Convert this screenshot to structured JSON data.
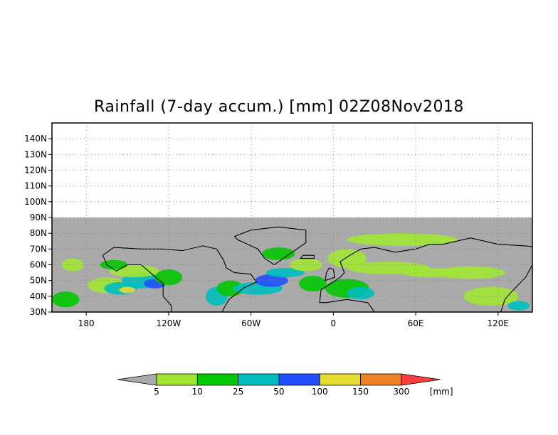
{
  "title": "Rainfall (7-day accum.) [mm] 02Z08Nov2018",
  "map": {
    "lon_range": [
      -205,
      145
    ],
    "lat_range": [
      30,
      150
    ],
    "data_lat_max": 90,
    "lat_labels": [
      "30N",
      "40N",
      "50N",
      "60N",
      "70N",
      "80N",
      "90N",
      "100N",
      "110N",
      "120N",
      "130N",
      "140N"
    ],
    "lon_labels": [
      {
        "label": "180",
        "lon": -180
      },
      {
        "label": "120W",
        "lon": -120
      },
      {
        "label": "60W",
        "lon": -60
      },
      {
        "label": "0",
        "lon": 0
      },
      {
        "label": "60E",
        "lon": 60
      },
      {
        "label": "120E",
        "lon": 120
      }
    ],
    "grid": "dotted",
    "no_data_color": "#aaaaaa"
  },
  "colorbar": {
    "unit_label": "[mm]",
    "levels": [
      "5",
      "10",
      "25",
      "50",
      "100",
      "150",
      "300"
    ],
    "colors": [
      "#aaaaaa",
      "#a0e632",
      "#00c800",
      "#00bebe",
      "#2050ff",
      "#e6dc32",
      "#f08228",
      "#fa3c3c"
    ]
  },
  "rain_bands": [
    {
      "lon": -165,
      "lat": 47,
      "rx": 14,
      "ry": 5,
      "level": 1
    },
    {
      "lon": -155,
      "lat": 45,
      "rx": 12,
      "ry": 4,
      "level": 3
    },
    {
      "lon": -150,
      "lat": 44,
      "rx": 6,
      "ry": 2,
      "level": 5
    },
    {
      "lon": -140,
      "lat": 50,
      "rx": 14,
      "ry": 5,
      "level": 3
    },
    {
      "lon": -130,
      "lat": 48,
      "rx": 8,
      "ry": 3,
      "level": 4
    },
    {
      "lon": -145,
      "lat": 56,
      "rx": 18,
      "ry": 4,
      "level": 1
    },
    {
      "lon": -160,
      "lat": 60,
      "rx": 10,
      "ry": 3,
      "level": 2
    },
    {
      "lon": -120,
      "lat": 52,
      "rx": 10,
      "ry": 5,
      "level": 2
    },
    {
      "lon": -85,
      "lat": 40,
      "rx": 8,
      "ry": 6,
      "level": 3
    },
    {
      "lon": -75,
      "lat": 45,
      "rx": 10,
      "ry": 5,
      "level": 2
    },
    {
      "lon": -55,
      "lat": 45,
      "rx": 18,
      "ry": 4,
      "level": 3
    },
    {
      "lon": -45,
      "lat": 50,
      "rx": 12,
      "ry": 4,
      "level": 4
    },
    {
      "lon": -35,
      "lat": 55,
      "rx": 14,
      "ry": 3,
      "level": 3
    },
    {
      "lon": -40,
      "lat": 67,
      "rx": 12,
      "ry": 4,
      "level": 2
    },
    {
      "lon": -20,
      "lat": 60,
      "rx": 12,
      "ry": 4,
      "level": 1
    },
    {
      "lon": -15,
      "lat": 48,
      "rx": 10,
      "ry": 5,
      "level": 2
    },
    {
      "lon": 10,
      "lat": 45,
      "rx": 16,
      "ry": 6,
      "level": 2
    },
    {
      "lon": 20,
      "lat": 42,
      "rx": 10,
      "ry": 4,
      "level": 3
    },
    {
      "lon": 10,
      "lat": 64,
      "rx": 14,
      "ry": 6,
      "level": 1
    },
    {
      "lon": 40,
      "lat": 58,
      "rx": 30,
      "ry": 4,
      "level": 1
    },
    {
      "lon": 70,
      "lat": 55,
      "rx": 20,
      "ry": 3,
      "level": 1
    },
    {
      "lon": 100,
      "lat": 55,
      "rx": 25,
      "ry": 4,
      "level": 1
    },
    {
      "lon": 50,
      "lat": 76,
      "rx": 40,
      "ry": 4,
      "level": 1
    },
    {
      "lon": 115,
      "lat": 40,
      "rx": 20,
      "ry": 6,
      "level": 1
    },
    {
      "lon": 135,
      "lat": 34,
      "rx": 8,
      "ry": 3,
      "level": 3
    },
    {
      "lon": -195,
      "lat": 38,
      "rx": 10,
      "ry": 5,
      "level": 2
    },
    {
      "lon": -190,
      "lat": 60,
      "rx": 8,
      "ry": 4,
      "level": 1
    }
  ],
  "land_polys": [
    {
      "name": "north-america",
      "coords": [
        [
          -168,
          66
        ],
        [
          -160,
          71
        ],
        [
          -140,
          70
        ],
        [
          -125,
          70
        ],
        [
          -110,
          69
        ],
        [
          -95,
          72
        ],
        [
          -85,
          70
        ],
        [
          -80,
          63
        ],
        [
          -78,
          58
        ],
        [
          -72,
          55
        ],
        [
          -60,
          54
        ],
        [
          -56,
          49
        ],
        [
          -66,
          45
        ],
        [
          -70,
          42
        ],
        [
          -76,
          38
        ],
        [
          -80,
          32
        ],
        [
          -81,
          30
        ],
        [
          -118,
          30
        ],
        [
          -118,
          34
        ],
        [
          -124,
          40
        ],
        [
          -124,
          48
        ],
        [
          -132,
          54
        ],
        [
          -140,
          60
        ],
        [
          -150,
          60
        ],
        [
          -158,
          56
        ],
        [
          -165,
          60
        ],
        [
          -168,
          66
        ]
      ]
    },
    {
      "name": "greenland",
      "coords": [
        [
          -72,
          78
        ],
        [
          -60,
          82
        ],
        [
          -40,
          84
        ],
        [
          -20,
          82
        ],
        [
          -20,
          74
        ],
        [
          -30,
          68
        ],
        [
          -43,
          60
        ],
        [
          -50,
          64
        ],
        [
          -55,
          70
        ],
        [
          -70,
          76
        ],
        [
          -72,
          78
        ]
      ]
    },
    {
      "name": "eurasia",
      "coords": [
        [
          -10,
          36
        ],
        [
          -9,
          44
        ],
        [
          -2,
          48
        ],
        [
          5,
          52
        ],
        [
          8,
          55
        ],
        [
          5,
          62
        ],
        [
          12,
          66
        ],
        [
          20,
          70
        ],
        [
          30,
          71
        ],
        [
          45,
          68
        ],
        [
          60,
          70
        ],
        [
          70,
          73
        ],
        [
          80,
          73
        ],
        [
          100,
          77
        ],
        [
          120,
          73
        ],
        [
          140,
          72
        ],
        [
          160,
          70
        ],
        [
          180,
          66
        ],
        [
          145,
          60
        ],
        [
          140,
          52
        ],
        [
          130,
          43
        ],
        [
          125,
          38
        ],
        [
          122,
          30
        ],
        [
          30,
          30
        ],
        [
          25,
          36
        ],
        [
          10,
          38
        ],
        [
          -5,
          36
        ],
        [
          -10,
          36
        ]
      ]
    },
    {
      "name": "uk",
      "coords": [
        [
          -6,
          50
        ],
        [
          -5,
          55
        ],
        [
          -3,
          58
        ],
        [
          0,
          57
        ],
        [
          1,
          52
        ],
        [
          -6,
          50
        ]
      ]
    },
    {
      "name": "iceland",
      "coords": [
        [
          -24,
          64
        ],
        [
          -22,
          66
        ],
        [
          -14,
          66
        ],
        [
          -14,
          64
        ],
        [
          -24,
          64
        ]
      ]
    }
  ]
}
